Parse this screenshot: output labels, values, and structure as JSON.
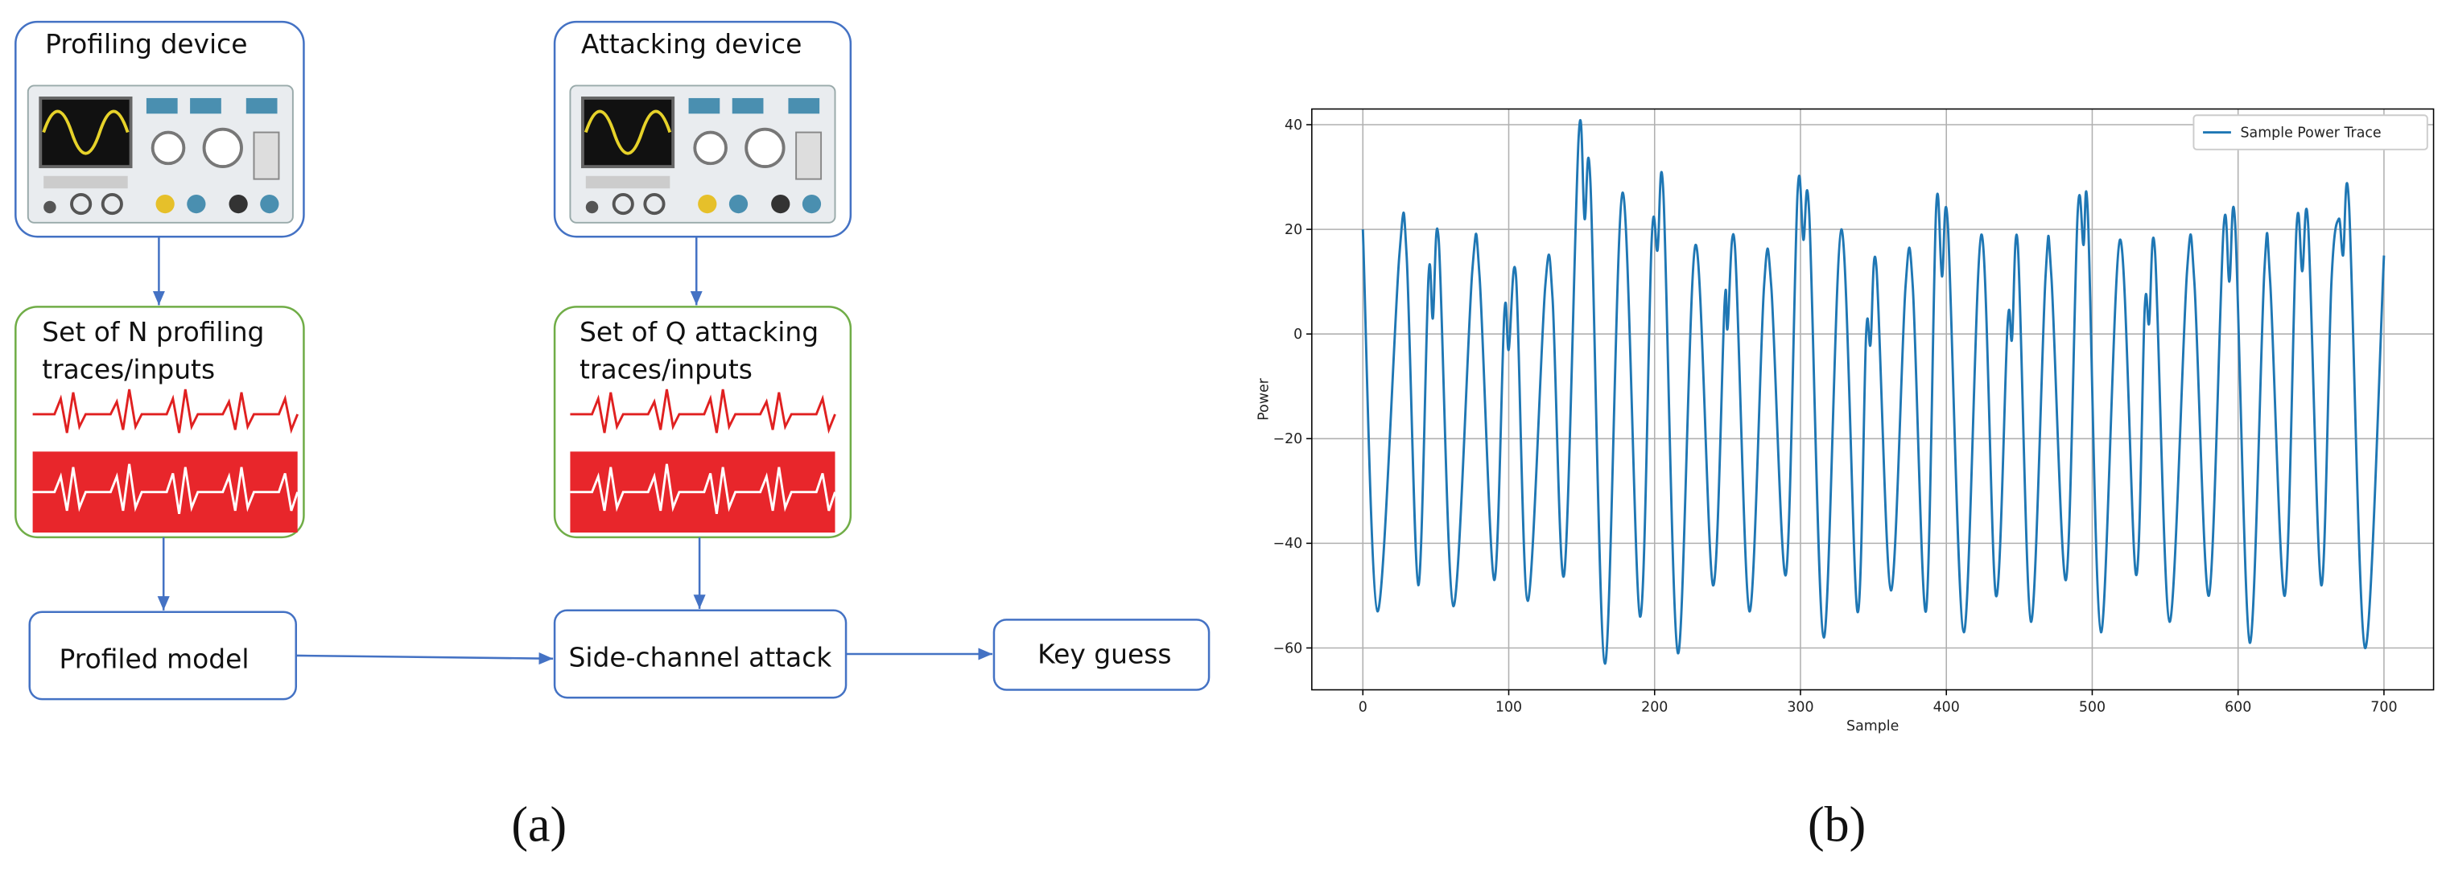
{
  "diagram": {
    "nodes": [
      {
        "label": "Profiling  device"
      },
      {
        "label": "Attacking  device"
      },
      {
        "lines": [
          "Set of N profiling",
          "traces/inputs"
        ]
      },
      {
        "lines": [
          "Set of Q attacking",
          "traces/inputs"
        ]
      },
      {
        "label": "Profiled model"
      },
      {
        "label": "Side-channel attack"
      },
      {
        "label": "Key guess"
      }
    ],
    "caption": "(a)"
  },
  "chart_data": {
    "type": "line",
    "caption": "(b)",
    "xlabel": "Sample",
    "ylabel": "Power",
    "xlim": [
      -35,
      734
    ],
    "ylim": [
      -68,
      43
    ],
    "xticks": [
      0,
      100,
      200,
      300,
      400,
      500,
      600,
      700
    ],
    "yticks": [
      {
        "value": -60,
        "label": "−60"
      },
      {
        "value": -40,
        "label": "−40"
      },
      {
        "value": -20,
        "label": "−20"
      },
      0,
      20,
      40
    ],
    "grid": true,
    "legend": "upper right",
    "series": [
      {
        "name": "Sample Power Trace",
        "color": "#1f77b4",
        "x": [
          0,
          10,
          25,
          30,
          38,
          45,
          48,
          52,
          62,
          75,
          80,
          90,
          97,
          100,
          105,
          113,
          125,
          130,
          138,
          148,
          152,
          156,
          166,
          178,
          190,
          198,
          202,
          206,
          216,
          228,
          240,
          248,
          250,
          255,
          265,
          275,
          280,
          290,
          298,
          302,
          306,
          316,
          328,
          339,
          345,
          348,
          352,
          362,
          372,
          377,
          386,
          393,
          397,
          401,
          412,
          424,
          434,
          442,
          445,
          449,
          458,
          468,
          472,
          482,
          490,
          494,
          497,
          506,
          519,
          530,
          536,
          539,
          543,
          553,
          565,
          570,
          580,
          590,
          594,
          598,
          608,
          618,
          622,
          632,
          640,
          644,
          648,
          657,
          664,
          669,
          672,
          676,
          687,
          700
        ],
        "values": [
          20,
          -53,
          15,
          15,
          -48,
          11,
          3,
          18,
          -52,
          12,
          11,
          -47,
          4,
          -3,
          11,
          -51,
          9,
          7,
          -46,
          38,
          22,
          29,
          -63,
          27,
          -54,
          18,
          16,
          27,
          -61,
          17,
          -48,
          6,
          1,
          17,
          -53,
          9,
          9,
          -46,
          27,
          18,
          23,
          -58,
          20,
          -53,
          0,
          -2,
          13,
          -49,
          9,
          9,
          -53,
          24,
          11,
          21,
          -57,
          19,
          -50,
          2,
          -1,
          17,
          -55,
          11,
          11,
          -47,
          23,
          17,
          23,
          -57,
          18,
          -46,
          5,
          2,
          16,
          -55,
          12,
          10,
          -50,
          20,
          10,
          21,
          -59,
          12,
          10,
          -50,
          20,
          12,
          21,
          -48,
          10,
          22,
          15,
          25,
          -60,
          15
        ]
      }
    ]
  }
}
